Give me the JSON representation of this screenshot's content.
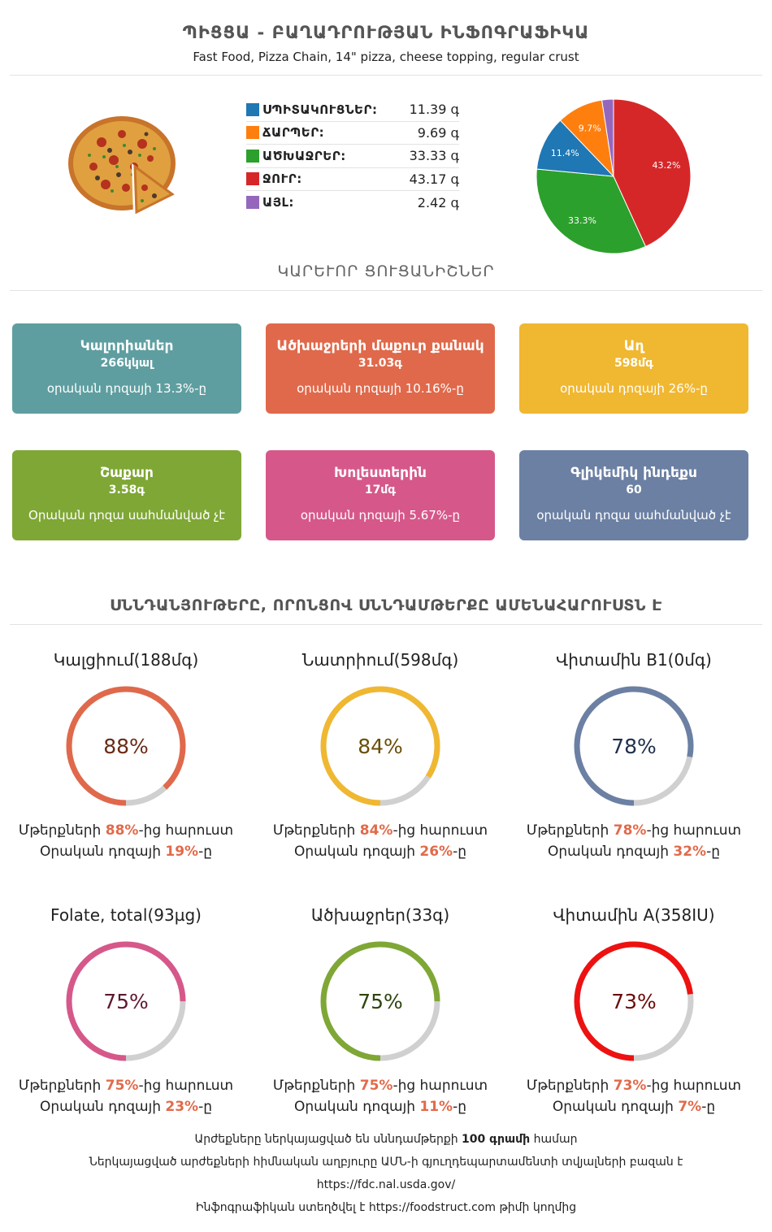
{
  "header": {
    "title": "ՊԻՑՑԱ - ԲԱՂԱԴՐՈՒԹՅԱՆ ԻՆՖՈԳՐԱՖԻԿԱ",
    "subtitle": "Fast Food, Pizza Chain, 14\" pizza, cheese topping, regular crust"
  },
  "macros": [
    {
      "label": "ՍՊԻՏԱԿՈՒՑՆԵՐ:",
      "value": "11.39 գ",
      "color": "#1f77b4"
    },
    {
      "label": "ՃԱՐՊԵՐ:",
      "value": "9.69 գ",
      "color": "#ff7f0e"
    },
    {
      "label": "ԱԾԽԱՋՐԵՐ:",
      "value": "33.33 գ",
      "color": "#2ca02c"
    },
    {
      "label": "ՋՈՒՐ:",
      "value": "43.17 գ",
      "color": "#d62728"
    },
    {
      "label": "ԱՅԼ:",
      "value": "2.42 գ",
      "color": "#9467bd"
    }
  ],
  "chart_data": {
    "type": "pie",
    "slices": [
      {
        "label": "43.2%",
        "value": 43.17,
        "color": "#d62728"
      },
      {
        "label": "33.3%",
        "value": 33.33,
        "color": "#2ca02c"
      },
      {
        "label": "11.4%",
        "value": 11.39,
        "color": "#1f77b4"
      },
      {
        "label": "9.7%",
        "value": 9.69,
        "color": "#ff7f0e"
      },
      {
        "label": "",
        "value": 2.42,
        "color": "#9467bd"
      }
    ]
  },
  "sections": {
    "key_indicators": "ԿԱՐԵՒՈՐ ՑՈՒՑԱՆԻՇՆԵՐ",
    "nutrients": "ՍՆՆԴԱՆՅՈՒԹԵՐԸ, ՈՐՈՆՑՈՎ ՍՆՆԴԱՄԹԵՐՔԸ ԱՄԵՆԱՀԱՐՈՒՍՏՆ Է"
  },
  "cards": [
    {
      "name": "Կալորիաներ",
      "value": "266կկալ",
      "note": "օրական դոզայի 13.3%-ը",
      "color": "#5f9ea0"
    },
    {
      "name": "Ածխաջրերի մաքուր քանակ",
      "value": "31.03գ",
      "note": "օրական դոզայի 10.16%-ը",
      "color": "#e0694b"
    },
    {
      "name": "Աղ",
      "value": "598մգ",
      "note": "օրական դոզայի 26%-ը",
      "color": "#f0b731"
    },
    {
      "name": "Շաքար",
      "value": "3.58գ",
      "note": "Օրական դոզա սահմանված չէ",
      "color": "#7fa735"
    },
    {
      "name": "Խոլեստերին",
      "value": "17մգ",
      "note": "օրական դոզայի 5.67%-ը",
      "color": "#d6588a"
    },
    {
      "name": "Գլիկեմիկ ինդեքս",
      "value": "60",
      "note": "օրական դոզա սահմանված չէ",
      "color": "#6b80a3"
    }
  ],
  "nutrients": [
    {
      "title": "Կալցիում(188մգ)",
      "percent": 88,
      "percent_label": "88%",
      "daily": "19%",
      "color": "#e0694b",
      "text_color": "#6b2a16"
    },
    {
      "title": "Նատրիում(598մգ)",
      "percent": 84,
      "percent_label": "84%",
      "daily": "26%",
      "color": "#f0b731",
      "text_color": "#6b4e08"
    },
    {
      "title": "Վիտամին B1(0մգ)",
      "percent": 78,
      "percent_label": "78%",
      "daily": "32%",
      "color": "#6b80a3",
      "text_color": "#1f2f4d"
    },
    {
      "title": "Folate, total(93µg)",
      "percent": 75,
      "percent_label": "75%",
      "daily": "23%",
      "color": "#d6588a",
      "text_color": "#5e1833"
    },
    {
      "title": "Ածխաջրեր(33գ)",
      "percent": 75,
      "percent_label": "75%",
      "daily": "11%",
      "color": "#7fa735",
      "text_color": "#2f4410"
    },
    {
      "title": "Վիտամին A(358IU)",
      "percent": 73,
      "percent_label": "73%",
      "daily": "7%",
      "color": "#ee1111",
      "text_color": "#6b0b0b"
    }
  ],
  "nutrient_text": {
    "rank_prefix": "Մթերքների ",
    "rank_suffix": "-ից հարուստ",
    "daily_prefix": "Օրական դոզայի ",
    "daily_suffix": "-ը"
  },
  "footer": {
    "line1_prefix": "Արժեքները ներկայացված են սննդամթերքի ",
    "line1_bold": "100 գրամի",
    "line1_suffix": " համար",
    "line2": "Ներկայացված արժեքների հիմնական աղբյուրը ԱՄՆ-ի գյուղդեպարտամենտի տվյալների բազան է",
    "line3": "https://fdc.nal.usda.gov/",
    "line4_prefix": "Ինֆոգրաֆիկան ստեղծվել է ",
    "line4_link": "https://foodstruct.com",
    "line4_suffix": " թիմի կողմից"
  }
}
